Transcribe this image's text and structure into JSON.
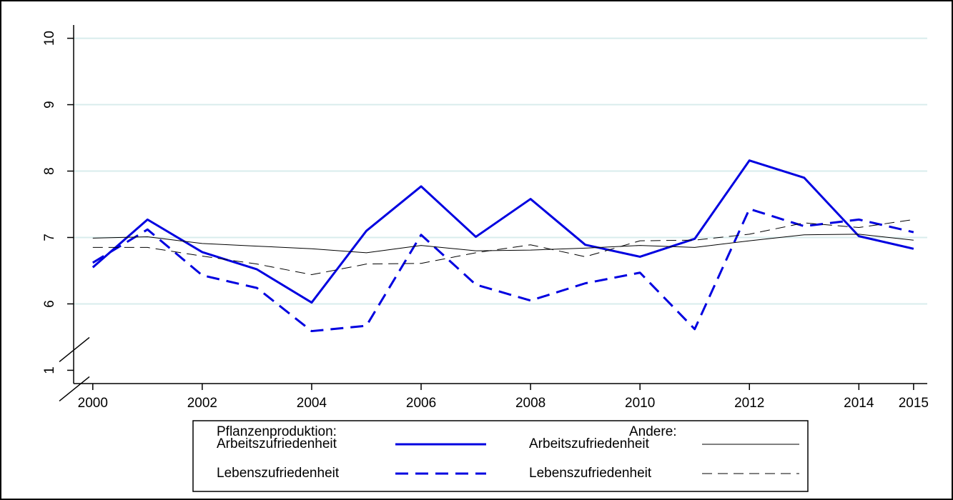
{
  "chart_data": {
    "type": "line",
    "x": [
      2000,
      2001,
      2002,
      2003,
      2004,
      2005,
      2006,
      2007,
      2008,
      2009,
      2010,
      2011,
      2012,
      2013,
      2014,
      2015
    ],
    "series": [
      {
        "name": "Arbeitszufriedenheit",
        "color": "#0000e0",
        "dash": false,
        "width": 3,
        "values": [
          6.55,
          7.27,
          6.78,
          6.52,
          6.02,
          7.1,
          7.77,
          7.01,
          7.58,
          6.89,
          6.71,
          6.98,
          8.16,
          7.9,
          7.02,
          6.83
        ]
      },
      {
        "name": "Lebenszufriedenheit",
        "color": "#0000e0",
        "dash": true,
        "width": 3,
        "values": [
          6.62,
          7.12,
          6.43,
          6.24,
          5.59,
          5.67,
          7.04,
          6.29,
          6.05,
          6.31,
          6.47,
          5.62,
          7.43,
          7.17,
          7.27,
          7.08
        ]
      },
      {
        "name": "Arbeitszufriedenheit",
        "color": "#000000",
        "dash": false,
        "width": 1,
        "values": [
          6.99,
          7.01,
          6.91,
          6.87,
          6.83,
          6.77,
          6.88,
          6.8,
          6.81,
          6.84,
          6.88,
          6.85,
          6.95,
          7.04,
          7.05,
          6.96
        ]
      },
      {
        "name": "Lebenszufriedenheit",
        "color": "#000000",
        "dash": true,
        "width": 1,
        "values": [
          6.85,
          6.85,
          6.72,
          6.6,
          6.44,
          6.6,
          6.61,
          6.77,
          6.89,
          6.71,
          6.95,
          6.96,
          7.05,
          7.22,
          7.15,
          7.27
        ]
      }
    ],
    "legend_groups": [
      "Pflanzenproduktion:",
      "Andere:"
    ],
    "xlim": [
      1999.65,
      2015.25
    ],
    "xticks": [
      2000,
      2002,
      2004,
      2006,
      2008,
      2010,
      2012,
      2014,
      2015
    ],
    "ylim": [
      0.8,
      10.2
    ],
    "yticks": [
      1,
      6,
      7,
      8,
      9,
      10
    ],
    "axis_break": [
      1,
      5
    ],
    "grid": true,
    "legend": "bottom"
  }
}
